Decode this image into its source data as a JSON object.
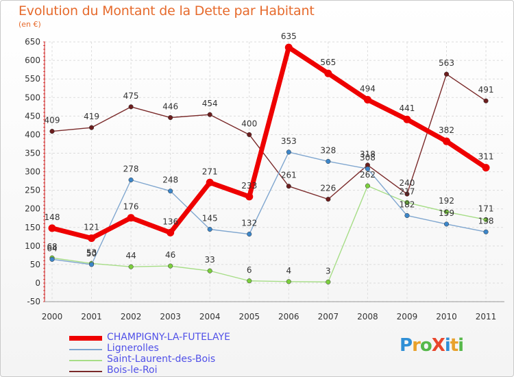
{
  "title": "Evolution du Montant de la Dette par Habitant",
  "subtitle": "(en €)",
  "logo": {
    "text": "ProXiti",
    "letters": [
      {
        "ch": "P",
        "color": "#2f8fd6"
      },
      {
        "ch": "r",
        "color": "#e8a12c"
      },
      {
        "ch": "o",
        "color": "#56b84a"
      },
      {
        "ch": "X",
        "color": "#e8462c"
      },
      {
        "ch": "i",
        "color": "#2f8fd6"
      },
      {
        "ch": "t",
        "color": "#e8a12c"
      },
      {
        "ch": "i",
        "color": "#56b84a"
      }
    ]
  },
  "chart_data": {
    "type": "line",
    "categories": [
      "2000",
      "2001",
      "2002",
      "2003",
      "2004",
      "2005",
      "2006",
      "2007",
      "2008",
      "2009",
      "2010",
      "2011"
    ],
    "ylim": [
      -50,
      650
    ],
    "yticks": [
      -50,
      0,
      50,
      100,
      150,
      200,
      250,
      300,
      350,
      400,
      450,
      500,
      550,
      600,
      650
    ],
    "grid": true,
    "legend_position": "bottom-left",
    "series": [
      {
        "name": "Bois-le-Roi",
        "color": "#7a2a2a",
        "dot": "#6b1e1e",
        "width": 1.4,
        "values": [
          409,
          419,
          475,
          446,
          454,
          400,
          261,
          226,
          318,
          240,
          563,
          491
        ]
      },
      {
        "name": "Saint-Laurent-des-Bois",
        "color": "#a6dd86",
        "dot": "#7ccf3e",
        "width": 1.4,
        "values": [
          68,
          53,
          44,
          46,
          33,
          6,
          4,
          3,
          262,
          217,
          192,
          171
        ]
      },
      {
        "name": "Lignerolles",
        "color": "#7fa6cf",
        "dot": "#3c86c9",
        "width": 1.4,
        "values": [
          64,
          50,
          278,
          248,
          145,
          132,
          353,
          328,
          308,
          182,
          159,
          138
        ]
      },
      {
        "name": "CHAMPIGNY-LA-FUTELAYE",
        "color": "#ee0000",
        "dot": "#ee0000",
        "width": 7,
        "values": [
          148,
          121,
          176,
          136,
          271,
          233,
          635,
          565,
          494,
          441,
          382,
          311
        ]
      }
    ],
    "data_labels": {
      "CHAMPIGNY-LA-FUTELAYE": [
        "148",
        "121",
        "176",
        "136",
        "271",
        "233",
        "635",
        "565",
        "494",
        "441",
        "382",
        "311"
      ],
      "Lignerolles": [
        "64",
        "50",
        "278",
        "248",
        "145",
        "132",
        "353",
        "328",
        "308",
        "182",
        "159",
        "138"
      ],
      "Saint-Laurent-des-Bois": [
        "68",
        "53",
        "44",
        "46",
        "33",
        "6",
        "4",
        "3",
        "262",
        "217",
        "192",
        "171"
      ],
      "Bois-le-Roi": [
        "409",
        "419",
        "475",
        "446",
        "454",
        "400",
        "261",
        "226",
        "318",
        "240",
        "563",
        "491"
      ]
    }
  },
  "legend": [
    {
      "label": "CHAMPIGNY-LA-FUTELAYE",
      "color": "#ee0000",
      "thick": true
    },
    {
      "label": "Lignerolles",
      "color": "#7fa6cf",
      "thick": false
    },
    {
      "label": "Saint-Laurent-des-Bois",
      "color": "#a6dd86",
      "thick": false
    },
    {
      "label": "Bois-le-Roi",
      "color": "#7a2a2a",
      "thick": false
    }
  ]
}
